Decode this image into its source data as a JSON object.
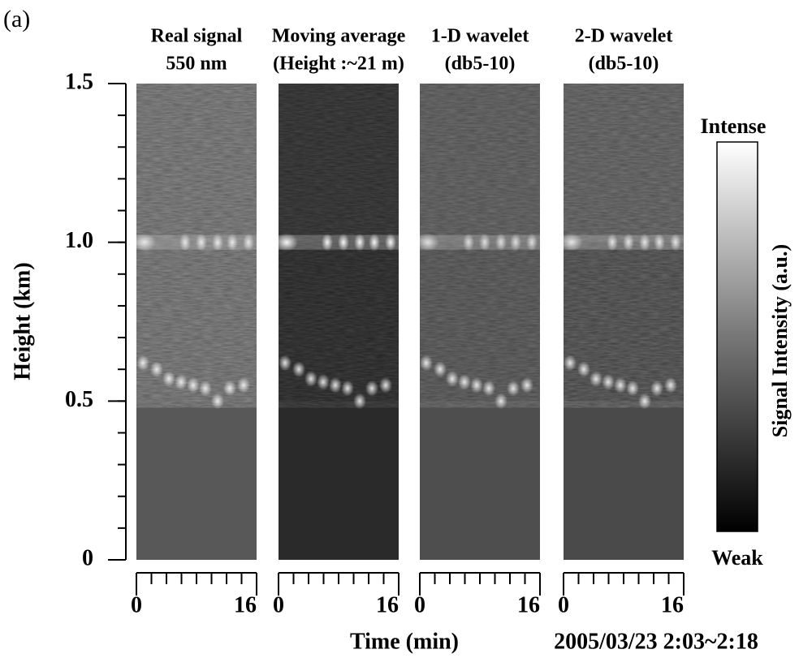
{
  "chart_data": {
    "type": "image-panels",
    "label": "(a)",
    "ylabel": "Height (km)",
    "ylim": [
      0,
      1.5
    ],
    "yticks": [
      0,
      0.5,
      {
        "value": 1,
        "label": "1.0"
      },
      1.5
    ],
    "yminor": 0.1,
    "xlabel": "Time (min)",
    "date": "2005/03/23 2:03~2:18",
    "xlim": [
      0,
      16
    ],
    "xticks": [
      0,
      16
    ],
    "xminor": 2,
    "panels": [
      {
        "title": [
          "Real signal",
          "550 nm"
        ]
      },
      {
        "title": [
          "Moving average",
          "(Height :~21 m)"
        ]
      },
      {
        "title": [
          "1-D wavelet",
          "(db5-10)"
        ]
      },
      {
        "title": [
          "2-D wavelet",
          "(db5-10)"
        ]
      }
    ],
    "colorbar": {
      "label": "Signal Intensity (a.u.)",
      "top": "Intense",
      "bottom": "Weak"
    }
  }
}
